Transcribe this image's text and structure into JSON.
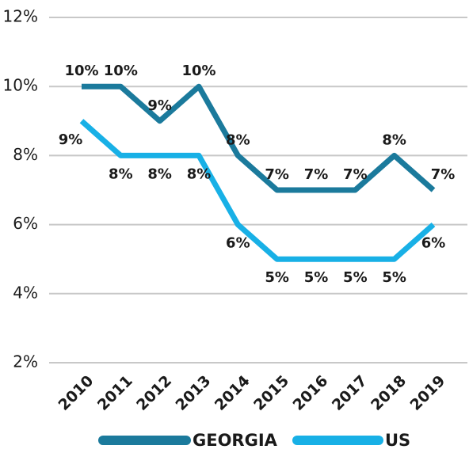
{
  "chart_data": {
    "type": "line",
    "categories": [
      "2010",
      "2011",
      "2012",
      "2013",
      "2014",
      "2015",
      "2016",
      "2017",
      "2018",
      "2019"
    ],
    "series": [
      {
        "name": "GEORGIA",
        "color": "#1b7a9c",
        "values": [
          10,
          10,
          9,
          10,
          8,
          7,
          7,
          7,
          8,
          7
        ],
        "value_labels": [
          "10%",
          "10%",
          "9%",
          "10%",
          "8%",
          "7%",
          "7%",
          "7%",
          "8%",
          "7%"
        ]
      },
      {
        "name": "US",
        "color": "#18b0e6",
        "values": [
          9,
          8,
          8,
          8,
          6,
          5,
          5,
          5,
          5,
          6
        ],
        "value_labels": [
          "9%",
          "8%",
          "8%",
          "8%",
          "6%",
          "5%",
          "5%",
          "5%",
          "5%",
          "6%"
        ]
      }
    ],
    "ylim": [
      2,
      12
    ],
    "yticks": [
      {
        "value": 2,
        "label": "2%"
      },
      {
        "value": 4,
        "label": "4%"
      },
      {
        "value": 6,
        "label": "6%"
      },
      {
        "value": 8,
        "label": "8%"
      },
      {
        "value": 10,
        "label": "10%"
      },
      {
        "value": 12,
        "label": "12%"
      }
    ],
    "grid": true
  }
}
